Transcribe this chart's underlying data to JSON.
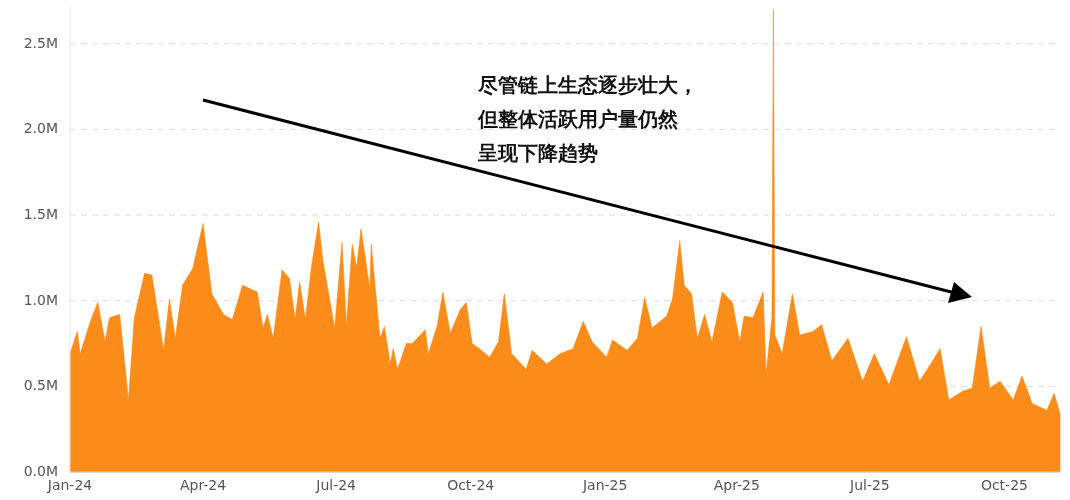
{
  "chart_data": {
    "type": "area",
    "color": "#fb8c1a",
    "grid": "y",
    "xlim": [
      "2024-01-01",
      "2025-11-08"
    ],
    "xticks": [
      {
        "value": "2024-01-01",
        "label": "Jan-24"
      },
      {
        "value": "2024-04-01",
        "label": "Apr-24"
      },
      {
        "value": "2024-07-01",
        "label": "Jul-24"
      },
      {
        "value": "2024-10-01",
        "label": "Oct-24"
      },
      {
        "value": "2025-01-01",
        "label": "Jan-25"
      },
      {
        "value": "2025-04-01",
        "label": "Apr-25"
      },
      {
        "value": "2025-07-01",
        "label": "Jul-25"
      },
      {
        "value": "2025-10-01",
        "label": "Oct-25"
      }
    ],
    "ylim": [
      0,
      2.72
    ],
    "yticks": [
      {
        "value": 0,
        "label": "0.0M"
      },
      {
        "value": 0.5,
        "label": "0.5M"
      },
      {
        "value": 1,
        "label": "1.0M"
      },
      {
        "value": 1.5,
        "label": "1.5M"
      },
      {
        "value": 2,
        "label": "2.0M"
      },
      {
        "value": 2.5,
        "label": "2.5M"
      }
    ],
    "annotations": [
      "尽管链上生态逐步壮大，",
      "但整体活跃用户量仍然",
      "呈现下降趋势"
    ],
    "x": [
      "2024-01-01",
      "2024-01-06",
      "2024-01-08",
      "2024-01-15",
      "2024-01-20",
      "2024-01-25",
      "2024-01-28",
      "2024-02-04",
      "2024-02-10",
      "2024-02-14",
      "2024-02-21",
      "2024-02-26",
      "2024-03-05",
      "2024-03-09",
      "2024-03-13",
      "2024-03-18",
      "2024-03-25",
      "2024-04-01",
      "2024-04-07",
      "2024-04-15",
      "2024-04-21",
      "2024-04-28",
      "2024-05-03",
      "2024-05-08",
      "2024-05-12",
      "2024-05-15",
      "2024-05-19",
      "2024-05-25",
      "2024-05-30",
      "2024-06-03",
      "2024-06-06",
      "2024-06-10",
      "2024-06-14",
      "2024-06-19",
      "2024-06-22",
      "2024-06-30",
      "2024-07-05",
      "2024-07-08",
      "2024-07-12",
      "2024-07-15",
      "2024-07-18",
      "2024-07-24",
      "2024-07-25",
      "2024-07-31",
      "2024-08-03",
      "2024-08-07",
      "2024-08-09",
      "2024-08-12",
      "2024-08-18",
      "2024-08-22",
      "2024-08-31",
      "2024-09-02",
      "2024-09-08",
      "2024-09-12",
      "2024-09-17",
      "2024-09-24",
      "2024-09-28",
      "2024-10-02",
      "2024-10-07",
      "2024-10-14",
      "2024-10-20",
      "2024-10-24",
      "2024-10-29",
      "2024-11-08",
      "2024-11-12",
      "2024-11-22",
      "2024-12-01",
      "2024-12-10",
      "2024-12-17",
      "2024-12-23",
      "2025-01-02",
      "2025-01-06",
      "2025-01-16",
      "2025-01-23",
      "2025-01-28",
      "2025-02-02",
      "2025-02-12",
      "2025-02-16",
      "2025-02-21",
      "2025-02-24",
      "2025-03-01",
      "2025-03-05",
      "2025-03-10",
      "2025-03-15",
      "2025-03-22",
      "2025-03-29",
      "2025-04-03",
      "2025-04-06",
      "2025-04-12",
      "2025-04-19",
      "2025-04-21",
      "2025-04-25",
      "2025-04-26",
      "2025-04-27",
      "2025-05-02",
      "2025-05-09",
      "2025-05-14",
      "2025-05-23",
      "2025-05-29",
      "2025-06-05",
      "2025-06-16",
      "2025-06-26",
      "2025-07-04",
      "2025-07-14",
      "2025-07-26",
      "2025-08-04",
      "2025-08-13",
      "2025-08-18",
      "2025-08-24",
      "2025-09-02",
      "2025-09-09",
      "2025-09-15",
      "2025-09-21",
      "2025-09-28",
      "2025-10-07",
      "2025-10-13",
      "2025-10-20",
      "2025-10-30",
      "2025-11-04",
      "2025-11-08"
    ],
    "values": [
      0.69,
      0.82,
      0.69,
      0.88,
      0.99,
      0.76,
      0.9,
      0.92,
      0.42,
      0.9,
      1.16,
      1.15,
      0.71,
      1.01,
      0.78,
      1.09,
      1.19,
      1.45,
      1.04,
      0.92,
      0.89,
      1.09,
      1.07,
      1.05,
      0.84,
      0.92,
      0.78,
      1.18,
      1.13,
      0.89,
      1.11,
      0.89,
      1.19,
      1.46,
      1.23,
      0.84,
      1.34,
      0.86,
      1.33,
      1.19,
      1.42,
      1.07,
      1.33,
      0.78,
      0.85,
      0.63,
      0.72,
      0.6,
      0.75,
      0.75,
      0.83,
      0.69,
      0.85,
      1.05,
      0.81,
      0.95,
      0.99,
      0.75,
      0.72,
      0.67,
      0.76,
      1.04,
      0.69,
      0.6,
      0.71,
      0.63,
      0.69,
      0.72,
      0.88,
      0.76,
      0.67,
      0.77,
      0.71,
      0.78,
      1.02,
      0.84,
      0.91,
      1.01,
      1.35,
      1.09,
      1.04,
      0.78,
      0.92,
      0.76,
      1.05,
      0.99,
      0.76,
      0.91,
      0.9,
      1.05,
      0.57,
      0.9,
      2.7,
      0.8,
      0.69,
      1.04,
      0.8,
      0.82,
      0.86,
      0.65,
      0.78,
      0.53,
      0.69,
      0.51,
      0.79,
      0.53,
      0.65,
      0.72,
      0.42,
      0.47,
      0.49,
      0.85,
      0.49,
      0.53,
      0.42,
      0.56,
      0.4,
      0.36,
      0.46,
      0.34
    ]
  }
}
